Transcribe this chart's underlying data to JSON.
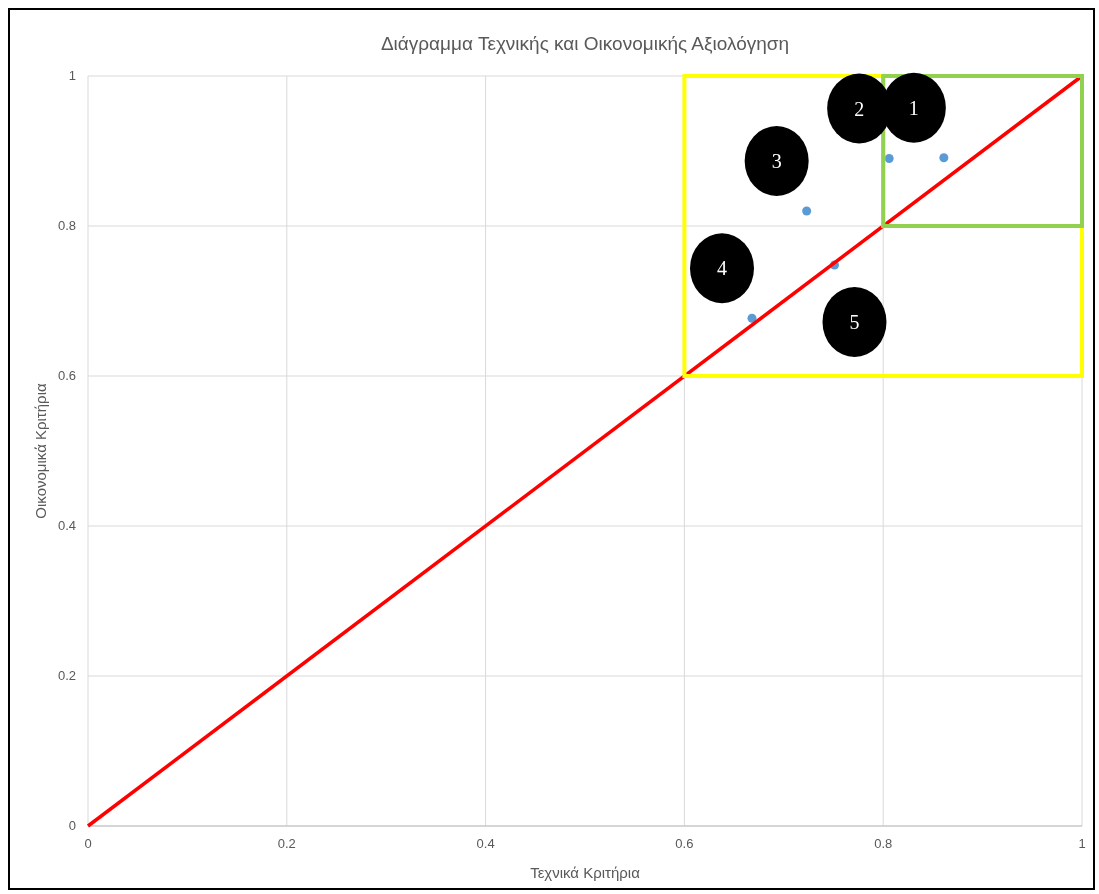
{
  "chart_data": {
    "type": "scatter",
    "title": "Διάγραμμα Τεχνικής και Οικονομικής Αξιολόγηση",
    "xlabel": "Τεχνικά Κριτήρια",
    "ylabel": "Οικονομικά Κριτήρια",
    "xlim": [
      0,
      1
    ],
    "ylim": [
      0,
      1
    ],
    "xticks": [
      0,
      0.2,
      0.4,
      0.6,
      0.8,
      1
    ],
    "yticks": [
      0,
      0.2,
      0.4,
      0.6,
      0.8,
      1
    ],
    "grid": true,
    "series": [
      {
        "marker": "circle",
        "color": "#5b9bd5",
        "x": [
          0.861,
          0.806,
          0.723,
          0.668,
          0.751
        ],
        "values": [
          0.891,
          0.89,
          0.82,
          0.677,
          0.748
        ]
      },
      {
        "type": "line",
        "color": "#ff0000",
        "x": [
          0,
          1
        ],
        "values": [
          0,
          1
        ]
      }
    ],
    "annotations": [
      {
        "text": "1",
        "x": 0.861,
        "y": 0.891
      },
      {
        "text": "2",
        "x": 0.806,
        "y": 0.89
      },
      {
        "text": "3",
        "x": 0.723,
        "y": 0.82
      },
      {
        "text": "4",
        "x": 0.668,
        "y": 0.677
      },
      {
        "text": "5",
        "x": 0.751,
        "y": 0.748
      }
    ]
  }
}
